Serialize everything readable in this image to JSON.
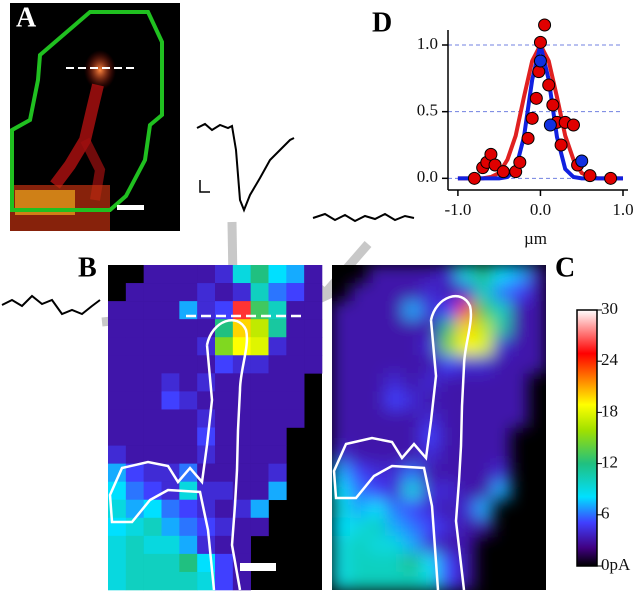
{
  "panels": [
    "A",
    "B",
    "C",
    "D"
  ],
  "chart_data": [
    {
      "type": "scatter",
      "xlabel": "µm",
      "xlim": [
        -1.12,
        1.0
      ],
      "ylim": [
        -0.05,
        1.15
      ],
      "xticks": [
        {
          "value": -1.0,
          "label": "-1.0"
        },
        {
          "value": 0,
          "label": "0.0"
        },
        {
          "value": 1.0,
          "label": "1.0"
        }
      ],
      "yticks": [
        {
          "value": 0,
          "label": "0.0"
        },
        {
          "value": 0.5,
          "label": "0.5"
        },
        {
          "value": 1.0,
          "label": "1.0"
        }
      ],
      "grid": true,
      "series": [
        {
          "type": "line",
          "color": "#e02020",
          "x": [
            -1.0,
            -0.9,
            -0.8,
            -0.7,
            -0.6,
            -0.5,
            -0.4,
            -0.3,
            -0.2,
            -0.1,
            0.0,
            0.1,
            0.2,
            0.3,
            0.4,
            0.5,
            0.6,
            0.7,
            0.8,
            0.9,
            1.0
          ],
          "values": [
            0,
            0,
            0,
            0,
            0.01,
            0.04,
            0.14,
            0.32,
            0.61,
            0.88,
            1.0,
            0.88,
            0.61,
            0.32,
            0.14,
            0.04,
            0.01,
            0,
            0,
            0,
            0
          ]
        },
        {
          "type": "line",
          "color": "#1020e0",
          "x": [
            -1.0,
            -0.9,
            -0.8,
            -0.7,
            -0.6,
            -0.5,
            -0.4,
            -0.3,
            -0.2,
            -0.1,
            0.0,
            0.1,
            0.2,
            0.3,
            0.4,
            0.5,
            0.6,
            0.7,
            0.8,
            0.9,
            1.0
          ],
          "values": [
            0,
            0,
            0,
            0,
            0,
            0,
            0.01,
            0.07,
            0.31,
            0.74,
            1.0,
            0.74,
            0.31,
            0.07,
            0.01,
            0,
            0,
            0,
            0,
            0,
            0
          ]
        },
        {
          "type": "scatter",
          "color": "#e00000",
          "x": [
            -0.8,
            -0.7,
            -0.65,
            -0.6,
            -0.55,
            -0.45,
            -0.3,
            -0.25,
            -0.15,
            -0.1,
            -0.05,
            -0.02,
            0.0,
            0.05,
            0.1,
            0.15,
            0.2,
            0.25,
            0.3,
            0.4,
            0.45,
            0.6,
            0.85
          ],
          "values": [
            0.0,
            0.08,
            0.12,
            0.18,
            0.1,
            0.05,
            0.05,
            0.12,
            0.3,
            0.45,
            0.6,
            0.8,
            1.02,
            1.15,
            0.7,
            0.55,
            0.42,
            0.25,
            0.42,
            0.4,
            0.1,
            0.02,
            0.0
          ]
        },
        {
          "type": "scatter",
          "color": "#1030e0",
          "x": [
            0.0,
            0.12,
            0.5
          ],
          "values": [
            0.88,
            0.4,
            0.13
          ]
        }
      ]
    },
    {
      "type": "heatmap",
      "clim": [
        0,
        30
      ],
      "cticks": [
        {
          "value": 0,
          "label": "0pA"
        },
        6,
        12,
        18,
        24,
        30
      ],
      "values": [
        [
          null,
          null,
          3,
          3,
          3,
          3,
          4,
          9,
          12,
          8,
          7,
          3
        ],
        [
          null,
          3,
          3,
          3,
          3,
          4,
          3,
          4,
          10,
          6,
          5,
          3
        ],
        [
          3,
          3,
          3,
          3,
          7,
          4,
          5,
          26,
          13,
          10,
          3,
          3
        ],
        [
          3,
          3,
          3,
          3,
          3,
          3,
          12,
          20,
          17,
          11,
          3,
          3
        ],
        [
          3,
          3,
          3,
          3,
          3,
          4,
          15,
          19,
          18,
          4,
          3,
          3
        ],
        [
          3,
          3,
          3,
          3,
          3,
          3,
          5,
          4,
          4,
          3,
          3,
          3
        ],
        [
          3,
          3,
          3,
          4,
          3,
          4,
          3,
          3,
          3,
          3,
          3,
          null
        ],
        [
          3,
          3,
          3,
          5,
          4,
          3,
          3,
          3,
          3,
          3,
          3,
          null
        ],
        [
          3,
          3,
          3,
          3,
          3,
          4,
          3,
          3,
          3,
          3,
          3,
          null
        ],
        [
          3,
          3,
          3,
          3,
          3,
          5,
          3,
          3,
          3,
          3,
          null,
          null
        ],
        [
          4,
          3,
          3,
          3,
          3,
          4,
          3,
          3,
          3,
          3,
          null,
          null
        ],
        [
          7,
          5,
          4,
          4,
          6,
          3,
          3,
          3,
          3,
          4,
          null,
          null
        ],
        [
          8,
          6,
          5,
          4,
          9,
          4,
          4,
          3,
          3,
          7,
          null,
          null
        ],
        [
          9,
          7,
          8,
          6,
          5,
          4,
          3,
          4,
          7,
          null,
          null,
          null
        ],
        [
          8,
          9,
          10,
          7,
          6,
          5,
          4,
          3,
          3,
          null,
          null,
          null
        ],
        [
          9,
          10,
          9,
          9,
          7,
          4,
          3,
          3,
          null,
          null,
          null,
          null
        ],
        [
          9,
          10,
          10,
          10,
          12,
          8,
          5,
          3,
          null,
          null,
          null,
          null
        ],
        [
          9,
          10,
          10,
          10,
          10,
          9,
          5,
          3,
          null,
          null,
          null,
          null
        ]
      ]
    }
  ]
}
